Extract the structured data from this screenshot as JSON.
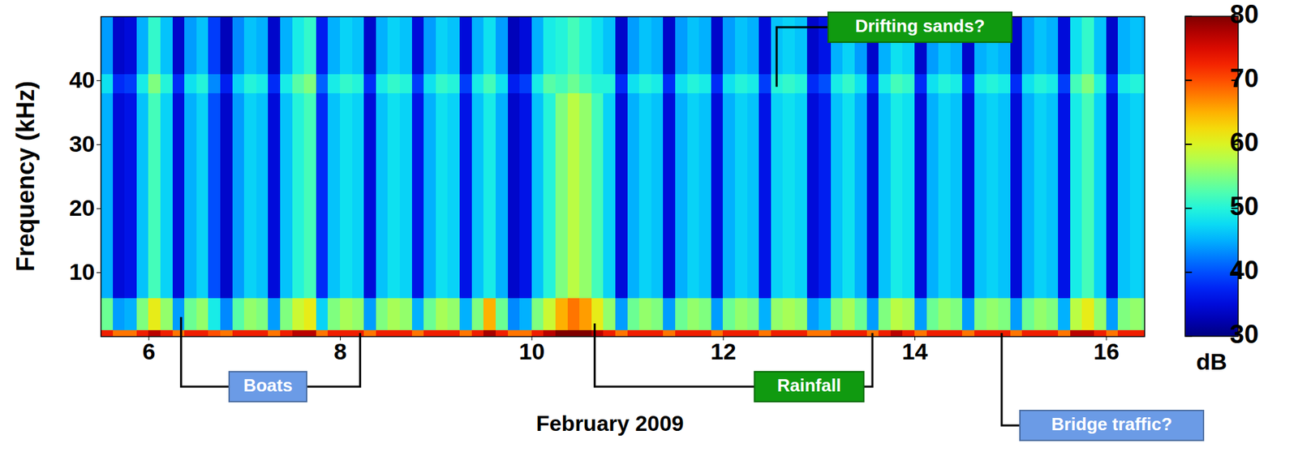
{
  "chart_data": {
    "type": "heatmap",
    "x_label": "February 2009",
    "y_label": "Frequency (kHz)",
    "xlim": [
      5.5,
      16.4
    ],
    "xticks": [
      6,
      8,
      10,
      12,
      14,
      16
    ],
    "ylim": [
      0,
      50
    ],
    "yticks": [
      10,
      20,
      30,
      40
    ],
    "x_bins": [
      5.5,
      5.625,
      5.75,
      5.875,
      6,
      6.125,
      6.25,
      6.375,
      6.5,
      6.625,
      6.75,
      6.875,
      7,
      7.125,
      7.25,
      7.375,
      7.5,
      7.625,
      7.75,
      7.875,
      8,
      8.125,
      8.25,
      8.375,
      8.5,
      8.625,
      8.75,
      8.875,
      9,
      9.125,
      9.25,
      9.375,
      9.5,
      9.625,
      9.75,
      9.875,
      10,
      10.125,
      10.25,
      10.375,
      10.5,
      10.625,
      10.75,
      10.875,
      11,
      11.125,
      11.25,
      11.375,
      11.5,
      11.625,
      11.75,
      11.875,
      12,
      12.125,
      12.25,
      12.375,
      12.5,
      12.625,
      12.75,
      12.875,
      13,
      13.125,
      13.25,
      13.375,
      13.5,
      13.625,
      13.75,
      13.875,
      14,
      14.125,
      14.25,
      14.375,
      14.5,
      14.625,
      14.75,
      14.875,
      15,
      15.125,
      15.25,
      15.375,
      15.5,
      15.625,
      15.75,
      15.875,
      16,
      16.125,
      16.25,
      16.375,
      16.5
    ],
    "y_bins": [
      0,
      1,
      6,
      38,
      41,
      50
    ],
    "cells": [
      [
        73,
        68,
        68,
        73,
        77,
        73,
        68,
        73,
        73,
        70,
        68,
        73,
        73,
        73,
        68,
        73,
        77,
        77,
        68,
        73,
        73,
        73,
        68,
        73,
        73,
        73,
        68,
        73,
        73,
        73,
        68,
        73,
        78,
        73,
        68,
        68,
        73,
        77,
        80,
        80,
        80,
        77,
        73,
        68,
        73,
        73,
        73,
        68,
        73,
        73,
        73,
        68,
        73,
        73,
        73,
        68,
        73,
        73,
        73,
        68,
        68,
        73,
        73,
        73,
        68,
        73,
        77,
        73,
        68,
        73,
        73,
        73,
        68,
        73,
        73,
        73,
        68,
        73,
        73,
        73,
        68,
        77,
        77,
        73,
        68,
        73,
        73,
        73
      ],
      [
        54,
        44,
        45,
        55,
        61,
        56,
        44,
        54,
        56,
        49,
        43,
        53,
        56,
        55,
        44,
        55,
        59,
        61,
        47,
        55,
        57,
        56,
        44,
        55,
        57,
        56,
        45,
        54,
        57,
        56,
        45,
        55,
        65,
        54,
        43,
        45,
        55,
        59,
        65,
        68,
        66,
        61,
        56,
        44,
        54,
        56,
        55,
        44,
        54,
        56,
        55,
        44,
        54,
        56,
        55,
        45,
        56,
        57,
        56,
        44,
        46,
        55,
        57,
        54,
        44,
        55,
        58,
        57,
        44,
        54,
        56,
        55,
        44,
        55,
        56,
        55,
        44,
        54,
        56,
        55,
        45,
        58,
        61,
        56,
        44,
        55,
        56,
        55
      ],
      [
        45,
        35,
        36,
        46,
        52,
        47,
        35,
        45,
        47,
        40,
        34,
        44,
        47,
        46,
        35,
        46,
        50,
        52,
        38,
        46,
        48,
        47,
        35,
        46,
        48,
        47,
        36,
        45,
        48,
        47,
        36,
        46,
        49,
        45,
        34,
        36,
        46,
        50,
        55,
        58,
        56,
        52,
        47,
        35,
        45,
        47,
        46,
        35,
        45,
        47,
        46,
        35,
        45,
        47,
        46,
        36,
        47,
        48,
        47,
        35,
        37,
        46,
        48,
        45,
        35,
        46,
        49,
        48,
        35,
        45,
        47,
        46,
        35,
        46,
        47,
        46,
        35,
        45,
        47,
        46,
        36,
        49,
        52,
        47,
        35,
        46,
        47,
        46
      ],
      [
        48,
        38,
        39,
        49,
        55,
        50,
        38,
        48,
        50,
        43,
        37,
        47,
        50,
        49,
        38,
        49,
        53,
        55,
        41,
        49,
        51,
        50,
        38,
        49,
        51,
        50,
        39,
        48,
        51,
        50,
        39,
        49,
        52,
        48,
        37,
        39,
        49,
        53,
        52,
        54,
        52,
        50,
        50,
        38,
        48,
        50,
        49,
        38,
        48,
        50,
        49,
        38,
        48,
        50,
        49,
        39,
        50,
        51,
        50,
        38,
        40,
        49,
        51,
        48,
        38,
        49,
        52,
        51,
        38,
        48,
        50,
        49,
        38,
        49,
        50,
        49,
        38,
        48,
        50,
        49,
        39,
        52,
        55,
        50,
        38,
        49,
        50,
        49
      ],
      [
        44,
        34,
        35,
        45,
        51,
        46,
        34,
        44,
        46,
        39,
        33,
        43,
        46,
        45,
        34,
        45,
        49,
        51,
        37,
        45,
        47,
        46,
        34,
        45,
        47,
        46,
        35,
        44,
        47,
        46,
        35,
        45,
        48,
        44,
        33,
        35,
        45,
        49,
        50,
        52,
        50,
        48,
        46,
        34,
        44,
        46,
        45,
        34,
        44,
        46,
        45,
        34,
        44,
        46,
        45,
        35,
        46,
        47,
        46,
        34,
        36,
        45,
        47,
        44,
        34,
        45,
        48,
        47,
        34,
        44,
        46,
        45,
        34,
        45,
        46,
        45,
        34,
        44,
        46,
        45,
        35,
        48,
        51,
        46,
        34,
        45,
        46,
        45
      ]
    ],
    "colorbar": {
      "lim": [
        30,
        80
      ],
      "ticks": [
        30,
        40,
        50,
        60,
        70,
        80
      ],
      "label": "dB"
    },
    "annotations": [
      {
        "text": "Boats",
        "color": "#6b9be6",
        "targets": [
          {
            "x": 6.34,
            "y": 3
          },
          {
            "x": 8.21,
            "y": 0.5
          }
        ]
      },
      {
        "text": "Rainfall",
        "color": "#109a10",
        "targets": [
          {
            "x": 10.66,
            "y": 2
          },
          {
            "x": 13.56,
            "y": 0.5
          }
        ]
      },
      {
        "text": "Drifting sands?",
        "color": "#109a10",
        "targets": [
          {
            "x": 12.56,
            "y": 39
          }
        ]
      },
      {
        "text": "Bridge traffic?",
        "color": "#6b9be6",
        "targets": [
          {
            "x": 14.91,
            "y": 0.5
          }
        ]
      }
    ]
  }
}
